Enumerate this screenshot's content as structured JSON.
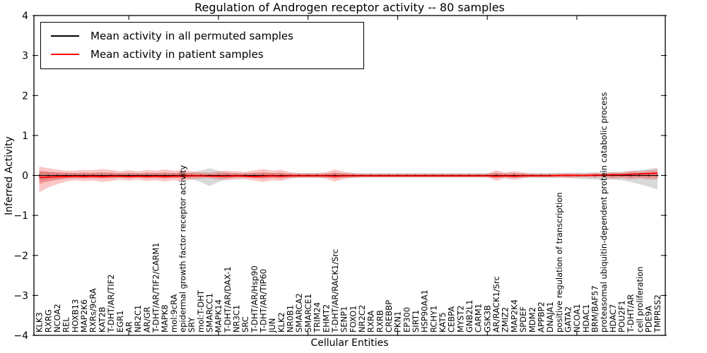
{
  "chart_data": {
    "type": "line",
    "title": "Regulation of Androgen receptor activity -- 80 samples",
    "xlabel": "Cellular Entities",
    "ylabel": "Inferred Activity",
    "ylim": [
      -4,
      4
    ],
    "grid": false,
    "legend_position": "upper left",
    "ytick_values": [
      4,
      3,
      2,
      1,
      0,
      -1,
      -2,
      -3,
      -4
    ],
    "ytick_labels": [
      "4",
      "3",
      "2",
      "1",
      "0",
      "−1",
      "−2",
      "−3",
      "−4"
    ],
    "xtick_major_indices": [
      10,
      20,
      30,
      40,
      50,
      60
    ],
    "categories": [
      "KLK3",
      "RXRG",
      "NCOA2",
      "REL",
      "HOXB13",
      "MAP2K6",
      "RXRs/9cRA",
      "KAT2B",
      "T-DHT/AR/TIF2",
      "EGR1",
      "AR",
      "NR2C1",
      "AR/GR",
      "T-DHT/AR/TIF2/CARM1",
      "MAPK8",
      "mol:9cRA",
      "epidermal growth factor receptor activity",
      "SRY",
      "mol:T-DHT",
      "SMARCC1",
      "MAPK14",
      "T-DHT/AR/DAX-1",
      "NR3C1",
      "SRC",
      "T-DHT/AR/Hsp90",
      "T-DHT/AR/TIP60",
      "JUN",
      "KLK2",
      "NR0B1",
      "SMARCA2",
      "SMARCE1",
      "TRIM24",
      "EHMT2",
      "T-DHT/AR/RACK1/Src",
      "SENP1",
      "FOXO1",
      "NR2C2",
      "RXRA",
      "RXRB",
      "CREBBP",
      "PKN1",
      "EP300",
      "SIRT1",
      "HSP90AA1",
      "RCHY1",
      "KAT5",
      "CEBPA",
      "MYST2",
      "GNB2L1",
      "CARM1",
      "GSK3B",
      "AR/RACK1/Src",
      "ZMIZ2",
      "MAP2K4",
      "SPDEF",
      "MDM2",
      "APPBP2",
      "DNAJA1",
      "positive regulation of transcription",
      "GATA2",
      "NCOA1",
      "HDAC1",
      "BRM/BAF57",
      "proteasomal ubiquitin-dependent protein catabolic process",
      "HDAC7",
      "POU2F1",
      "T-DHT/AR",
      "cell proliferation",
      "PDE9A",
      "TMPRSS2"
    ],
    "series": [
      {
        "name": "Mean activity in all permuted samples",
        "color": "#000000",
        "style": "solid-with-dot-markers",
        "values": [
          0,
          0,
          0,
          0,
          0,
          0,
          0,
          0,
          0,
          0,
          0,
          0,
          0,
          0,
          0,
          0,
          0,
          0,
          0,
          0,
          0,
          0,
          0,
          0,
          0,
          0,
          0,
          0,
          0,
          0,
          0,
          0,
          0,
          0,
          0,
          0,
          0,
          0,
          0,
          0,
          0,
          0,
          0,
          0,
          0,
          0,
          0,
          0,
          0,
          0,
          0,
          0,
          0,
          0,
          0,
          0,
          0,
          0,
          0,
          0,
          0,
          0,
          0,
          0,
          0,
          0,
          0,
          0,
          0,
          0
        ]
      },
      {
        "name": "Mean activity in patient samples",
        "color": "#ff0000",
        "style": "solid",
        "values": [
          -0.05,
          -0.04,
          -0.03,
          -0.03,
          -0.02,
          -0.03,
          -0.02,
          -0.03,
          -0.02,
          -0.02,
          -0.03,
          -0.02,
          -0.03,
          -0.02,
          -0.03,
          -0.02,
          -0.02,
          -0.01,
          -0.01,
          -0.02,
          -0.02,
          -0.02,
          -0.01,
          -0.02,
          -0.03,
          -0.02,
          -0.01,
          -0.02,
          -0.01,
          -0.01,
          -0.01,
          -0.01,
          -0.01,
          -0.02,
          -0.01,
          -0.01,
          -0.01,
          -0.01,
          -0.01,
          -0.01,
          -0.01,
          -0.01,
          -0.01,
          -0.01,
          -0.01,
          -0.01,
          -0.01,
          -0.01,
          -0.01,
          -0.01,
          -0.01,
          -0.02,
          -0.01,
          -0.02,
          -0.01,
          -0.01,
          -0.01,
          -0.01,
          0,
          0,
          0,
          0,
          0.01,
          0.01,
          0.02,
          0.02,
          0.03,
          0.04,
          0.05,
          0.06
        ]
      }
    ],
    "bands": [
      {
        "name": "permuted-samples spread",
        "color": "#888888",
        "opacity": 0.32,
        "upper": [
          0.1,
          0.09,
          0.08,
          0.07,
          0.06,
          0.06,
          0.06,
          0.06,
          0.06,
          0.055,
          0.055,
          0.055,
          0.055,
          0.055,
          0.055,
          0.055,
          0.06,
          0.08,
          0.12,
          0.18,
          0.12,
          0.07,
          0.055,
          0.055,
          0.06,
          0.06,
          0.055,
          0.055,
          0.055,
          0.055,
          0.055,
          0.055,
          0.055,
          0.055,
          0.055,
          0.055,
          0.055,
          0.055,
          0.055,
          0.055,
          0.055,
          0.055,
          0.055,
          0.055,
          0.055,
          0.055,
          0.055,
          0.055,
          0.055,
          0.055,
          0.055,
          0.06,
          0.055,
          0.06,
          0.055,
          0.055,
          0.06,
          0.06,
          0.06,
          0.06,
          0.07,
          0.07,
          0.08,
          0.08,
          0.08,
          0.09,
          0.11,
          0.13,
          0.16,
          0.2
        ],
        "lower": [
          -0.12,
          -0.1,
          -0.09,
          -0.08,
          -0.07,
          -0.065,
          -0.06,
          -0.06,
          -0.06,
          -0.06,
          -0.055,
          -0.055,
          -0.055,
          -0.055,
          -0.055,
          -0.055,
          -0.06,
          -0.09,
          -0.16,
          -0.27,
          -0.16,
          -0.08,
          -0.055,
          -0.055,
          -0.06,
          -0.06,
          -0.055,
          -0.055,
          -0.055,
          -0.055,
          -0.055,
          -0.055,
          -0.055,
          -0.055,
          -0.055,
          -0.055,
          -0.055,
          -0.055,
          -0.055,
          -0.055,
          -0.055,
          -0.055,
          -0.055,
          -0.055,
          -0.055,
          -0.055,
          -0.055,
          -0.055,
          -0.055,
          -0.055,
          -0.055,
          -0.06,
          -0.055,
          -0.06,
          -0.055,
          -0.055,
          -0.06,
          -0.06,
          -0.06,
          -0.06,
          -0.08,
          -0.09,
          -0.1,
          -0.12,
          -0.1,
          -0.12,
          -0.16,
          -0.22,
          -0.28,
          -0.35
        ],
        "legend": false
      },
      {
        "name": "patient-samples spread",
        "color": "#ee3333",
        "opacity": 0.28,
        "inner_core_scale": 0.5,
        "inner_core_opacity": 0.34,
        "upper": [
          0.22,
          0.18,
          0.15,
          0.12,
          0.12,
          0.14,
          0.13,
          0.16,
          0.14,
          0.1,
          0.13,
          0.1,
          0.14,
          0.12,
          0.15,
          0.12,
          0.14,
          0.1,
          0.08,
          0.07,
          0.1,
          0.12,
          0.1,
          0.09,
          0.13,
          0.16,
          0.12,
          0.14,
          0.08,
          0.06,
          0.06,
          0.06,
          0.08,
          0.15,
          0.09,
          0.06,
          0.05,
          0.05,
          0.05,
          0.05,
          0.05,
          0.05,
          0.05,
          0.05,
          0.05,
          0.05,
          0.05,
          0.05,
          0.05,
          0.05,
          0.05,
          0.13,
          0.07,
          0.11,
          0.07,
          0.05,
          0.05,
          0.05,
          0.05,
          0.06,
          0.05,
          0.05,
          0.06,
          0.05,
          0.09,
          0.07,
          0.12,
          0.1,
          0.13,
          0.15
        ],
        "lower": [
          -0.42,
          -0.3,
          -0.22,
          -0.15,
          -0.12,
          -0.14,
          -0.13,
          -0.16,
          -0.14,
          -0.1,
          -0.13,
          -0.1,
          -0.14,
          -0.12,
          -0.15,
          -0.12,
          -0.14,
          -0.1,
          -0.08,
          -0.07,
          -0.1,
          -0.12,
          -0.1,
          -0.09,
          -0.13,
          -0.16,
          -0.12,
          -0.14,
          -0.08,
          -0.06,
          -0.06,
          -0.06,
          -0.08,
          -0.15,
          -0.09,
          -0.06,
          -0.05,
          -0.05,
          -0.05,
          -0.05,
          -0.05,
          -0.05,
          -0.05,
          -0.05,
          -0.05,
          -0.05,
          -0.05,
          -0.05,
          -0.05,
          -0.05,
          -0.05,
          -0.13,
          -0.07,
          -0.11,
          -0.07,
          -0.05,
          -0.05,
          -0.05,
          -0.05,
          -0.06,
          -0.05,
          -0.05,
          -0.06,
          -0.05,
          -0.09,
          -0.07,
          -0.1,
          -0.08,
          -0.1,
          -0.1
        ],
        "legend": false
      }
    ]
  },
  "legend": {
    "items": [
      {
        "label": "Mean activity in all permuted samples",
        "color": "#000000"
      },
      {
        "label": "Mean activity in patient samples",
        "color": "#ff0000"
      }
    ]
  }
}
